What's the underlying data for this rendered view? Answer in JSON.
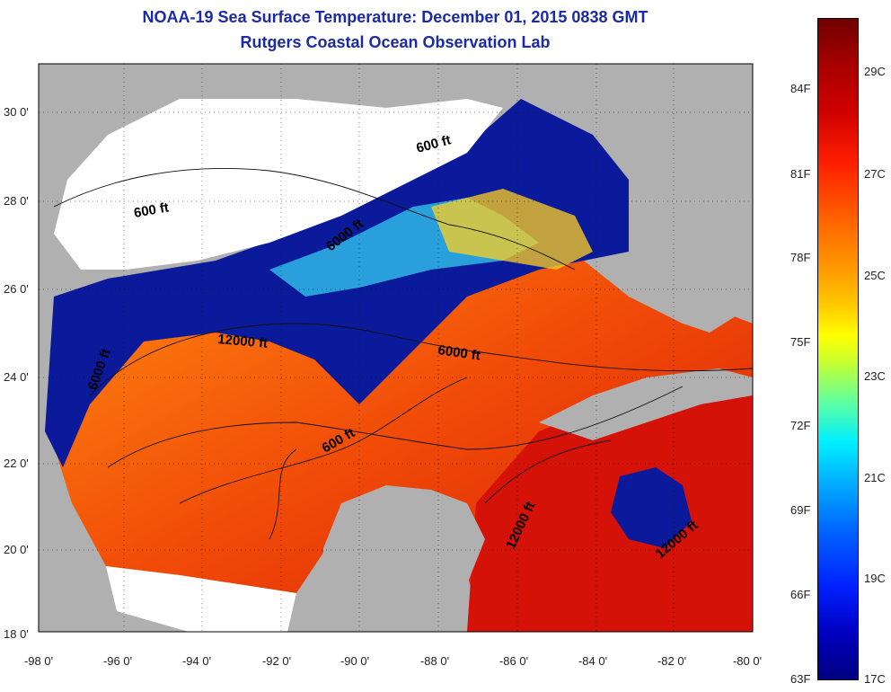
{
  "header": {
    "title": "NOAA-19 Sea Surface Temperature:  December 01, 2015 0838 GMT",
    "subtitle": "Rutgers Coastal Ocean Observation Lab"
  },
  "map": {
    "lon_ticks": [
      "-98 0'",
      "-96 0'",
      "-94 0'",
      "-92 0'",
      "-90 0'",
      "-88 0'",
      "-86 0'",
      "-84 0'",
      "-82 0'",
      "-80 0'"
    ],
    "lat_ticks": [
      "30 0'",
      "28 0'",
      "26 0'",
      "24 0'",
      "22 0'",
      "20 0'",
      "18 0'"
    ],
    "contour_labels": [
      "600 ft",
      "600 ft",
      "6000 ft",
      "12000 ft",
      "6000 ft",
      "6000 ft",
      "600 ft",
      "12000 ft",
      "12000 ft"
    ],
    "colors": {
      "land": "#b0b0b0",
      "cloud": "#ffffff",
      "cold": "#0a1a9a",
      "warm": "#f25a0a"
    }
  },
  "colorbar": {
    "fahrenheit": [
      "84F",
      "81F",
      "78F",
      "75F",
      "72F",
      "69F",
      "66F",
      "63F"
    ],
    "celsius": [
      "29C",
      "27C",
      "25C",
      "23C",
      "21C",
      "19C",
      "17C"
    ]
  }
}
